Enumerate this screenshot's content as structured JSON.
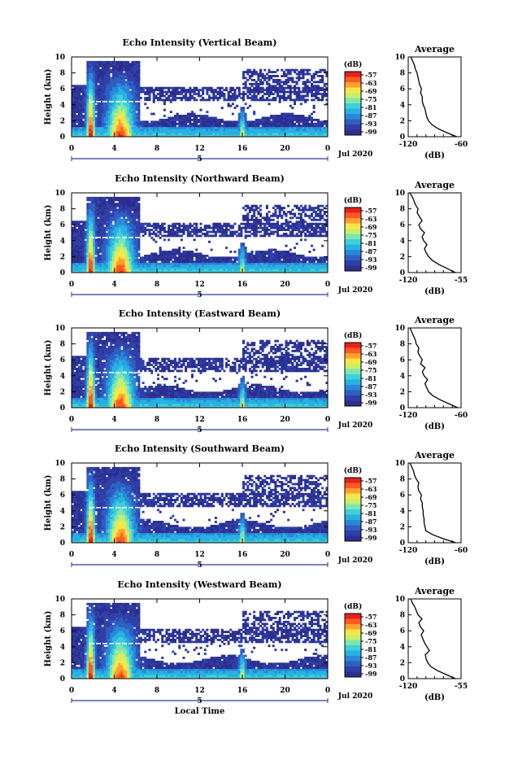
{
  "colors": {
    "colormap": [
      "#2b2f8f",
      "#3040a8",
      "#2d5fc4",
      "#2a88d6",
      "#29b0e3",
      "#3fd0d8",
      "#7fe6b0",
      "#c8ef6a",
      "#ffe445",
      "#ffa030",
      "#ff5a20",
      "#e8201a"
    ],
    "date_marker": "#2a3a9a"
  },
  "x_label": "Local Time",
  "date_label": "Jul 2020",
  "day_marker": "5",
  "average_title": "Average",
  "colorbar_unit": "(dB)",
  "colorbar_ticks": [
    "-57",
    "-63",
    "-69",
    "-75",
    "-81",
    "-87",
    "-93",
    "-99"
  ],
  "chart_data": [
    {
      "type": "heatmap",
      "title": "Echo Intensity (Vertical Beam)",
      "ylabel": "Height (km)",
      "xlabel": "",
      "x_ticks": [
        "0",
        "4",
        "8",
        "12",
        "16",
        "20",
        "0"
      ],
      "y_ticks": [
        "0",
        "2",
        "4",
        "6",
        "8",
        "10"
      ],
      "xlim": [
        0,
        24
      ],
      "ylim": [
        0,
        10
      ],
      "zlim": [
        -99,
        -57
      ],
      "average_profile": {
        "xlabel": "(dB)",
        "x_ticks": [
          "-120",
          "-60"
        ],
        "xlim": [
          -120,
          -60
        ],
        "y_ticks": [
          "0",
          "2",
          "4",
          "6",
          "8",
          "10"
        ],
        "height": [
          0.0,
          0.5,
          1.0,
          1.5,
          2.0,
          2.5,
          3.0,
          3.5,
          4.0,
          4.5,
          5.0,
          5.5,
          6.0,
          6.5,
          7.0,
          7.5,
          8.0,
          8.5,
          9.0,
          9.5,
          10.0
        ],
        "value": [
          -65,
          -76,
          -86,
          -93,
          -97,
          -99,
          -100,
          -101,
          -103,
          -104,
          -104,
          -106,
          -105,
          -107,
          -108,
          -109,
          -110,
          -112,
          -113,
          -115,
          -117
        ]
      }
    },
    {
      "type": "heatmap",
      "title": "Echo Intensity (Northward Beam)",
      "ylabel": "Height (km)",
      "xlabel": "",
      "x_ticks": [
        "0",
        "4",
        "8",
        "12",
        "16",
        "20",
        "0"
      ],
      "y_ticks": [
        "0",
        "2",
        "4",
        "6",
        "8",
        "10"
      ],
      "xlim": [
        0,
        24
      ],
      "ylim": [
        0,
        10
      ],
      "zlim": [
        -99,
        -57
      ],
      "average_profile": {
        "xlabel": "(dB)",
        "x_ticks": [
          "-120",
          "-55"
        ],
        "xlim": [
          -120,
          -55
        ],
        "y_ticks": [
          "0",
          "2",
          "4",
          "6",
          "8",
          "10"
        ],
        "height": [
          0.0,
          0.5,
          1.0,
          1.5,
          2.0,
          2.5,
          3.0,
          3.5,
          4.0,
          4.5,
          5.0,
          5.5,
          6.0,
          6.5,
          7.0,
          7.5,
          8.0,
          8.5,
          9.0,
          9.5,
          10.0
        ],
        "value": [
          -62,
          -72,
          -82,
          -90,
          -95,
          -98,
          -100,
          -97,
          -101,
          -103,
          -100,
          -105,
          -107,
          -103,
          -106,
          -109,
          -108,
          -111,
          -113,
          -115,
          -118
        ]
      }
    },
    {
      "type": "heatmap",
      "title": "Echo Intensity (Eastward Beam)",
      "ylabel": "Height (km)",
      "xlabel": "",
      "x_ticks": [
        "0",
        "4",
        "8",
        "12",
        "16",
        "20",
        "0"
      ],
      "y_ticks": [
        "0",
        "2",
        "4",
        "6",
        "8",
        "10"
      ],
      "xlim": [
        0,
        24
      ],
      "ylim": [
        0,
        10
      ],
      "zlim": [
        -99,
        -57
      ],
      "average_profile": {
        "xlabel": "(dB)",
        "x_ticks": [
          "-120",
          "-60"
        ],
        "xlim": [
          -120,
          -60
        ],
        "y_ticks": [
          "0",
          "2",
          "4",
          "6",
          "8",
          "10"
        ],
        "height": [
          0.0,
          0.5,
          1.0,
          1.5,
          2.0,
          2.5,
          3.0,
          3.5,
          4.0,
          4.5,
          5.0,
          5.5,
          6.0,
          6.5,
          7.0,
          7.5,
          8.0,
          8.5,
          9.0,
          9.5,
          10.0
        ],
        "value": [
          -64,
          -74,
          -84,
          -92,
          -97,
          -99,
          -101,
          -98,
          -102,
          -104,
          -101,
          -106,
          -104,
          -107,
          -109,
          -108,
          -111,
          -112,
          -114,
          -116,
          -118
        ]
      }
    },
    {
      "type": "heatmap",
      "title": "Echo Intensity (Southward Beam)",
      "ylabel": "Height (km)",
      "xlabel": "",
      "x_ticks": [
        "0",
        "4",
        "8",
        "12",
        "16",
        "20",
        "0"
      ],
      "y_ticks": [
        "0",
        "2",
        "4",
        "6",
        "8",
        "10"
      ],
      "xlim": [
        0,
        24
      ],
      "ylim": [
        0,
        10
      ],
      "zlim": [
        -99,
        -57
      ],
      "average_profile": {
        "xlabel": "(dB)",
        "x_ticks": [
          "-120",
          "-60"
        ],
        "xlim": [
          -120,
          -60
        ],
        "y_ticks": [
          "0",
          "2",
          "4",
          "6",
          "8",
          "10"
        ],
        "height": [
          0.0,
          0.5,
          1.0,
          1.5,
          2.0,
          2.5,
          3.0,
          3.5,
          4.0,
          4.5,
          5.0,
          5.5,
          6.0,
          6.5,
          7.0,
          7.5,
          8.0,
          8.5,
          9.0,
          9.5,
          10.0
        ],
        "value": [
          -66,
          -80,
          -92,
          -100,
          -101,
          -102,
          -102,
          -103,
          -103,
          -104,
          -104,
          -106,
          -105,
          -108,
          -109,
          -108,
          -111,
          -113,
          -114,
          -116,
          -118
        ]
      }
    },
    {
      "type": "heatmap",
      "title": "Echo Intensity (Westward Beam)",
      "ylabel": "Height (km)",
      "xlabel": "Local Time",
      "x_ticks": [
        "0",
        "4",
        "8",
        "12",
        "16",
        "20",
        "0"
      ],
      "y_ticks": [
        "0",
        "2",
        "4",
        "6",
        "8",
        "10"
      ],
      "xlim": [
        0,
        24
      ],
      "ylim": [
        0,
        10
      ],
      "zlim": [
        -99,
        -57
      ],
      "average_profile": {
        "xlabel": "(dB)",
        "x_ticks": [
          "-120",
          "-55"
        ],
        "xlim": [
          -120,
          -55
        ],
        "y_ticks": [
          "0",
          "2",
          "4",
          "6",
          "8",
          "10"
        ],
        "height": [
          0.0,
          0.5,
          1.0,
          1.5,
          2.0,
          2.5,
          3.0,
          3.5,
          4.0,
          4.5,
          5.0,
          5.5,
          6.0,
          6.5,
          7.0,
          7.5,
          8.0,
          8.5,
          9.0,
          9.5,
          10.0
        ],
        "value": [
          -62,
          -73,
          -84,
          -92,
          -96,
          -98,
          -99,
          -94,
          -97,
          -100,
          -102,
          -104,
          -101,
          -105,
          -107,
          -103,
          -108,
          -110,
          -112,
          -115,
          -117
        ]
      }
    }
  ]
}
